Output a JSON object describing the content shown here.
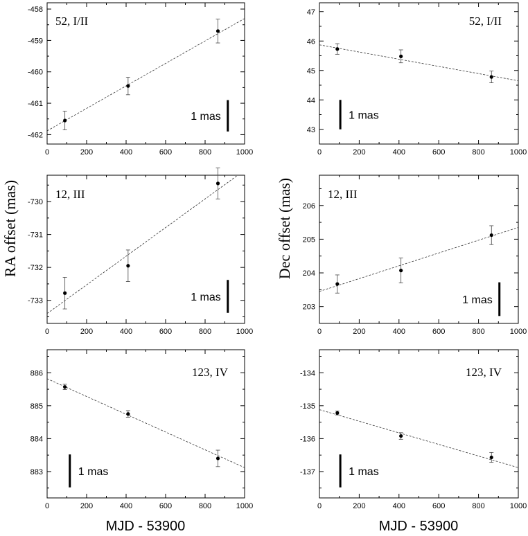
{
  "figure": {
    "ylabel_left": "RA offset (mas)",
    "ylabel_right": "Dec offset (mas)",
    "xlabel_left": "MJD - 53900",
    "xlabel_right": "MJD - 53900"
  },
  "chart_data": [
    {
      "type": "scatter",
      "panel": "ra-52",
      "label": "52, I/II",
      "xlim": [
        0,
        1000
      ],
      "ylim": [
        -462.3,
        -457.8
      ],
      "xticks": [
        0,
        200,
        400,
        600,
        800,
        1000
      ],
      "yticks": [
        -462,
        -461,
        -460,
        -459,
        -458
      ],
      "points": [
        {
          "x": 90,
          "y": -461.55,
          "err": 0.3
        },
        {
          "x": 410,
          "y": -460.45,
          "err": 0.28
        },
        {
          "x": 865,
          "y": -458.7,
          "err": 0.38
        }
      ],
      "fit": {
        "x0": 0,
        "y0": -461.88,
        "x1": 1000,
        "y1": -458.3
      },
      "scale_bar": {
        "label": "1 mas",
        "x": 915,
        "y_bottom": -461.9,
        "length": 1.0
      }
    },
    {
      "type": "scatter",
      "panel": "dec-52",
      "label": "52, I/II",
      "xlim": [
        0,
        1000
      ],
      "ylim": [
        42.5,
        47.3
      ],
      "xticks": [
        0,
        200,
        400,
        600,
        800,
        1000
      ],
      "yticks": [
        43,
        44,
        45,
        46,
        47
      ],
      "points": [
        {
          "x": 90,
          "y": 45.73,
          "err": 0.18
        },
        {
          "x": 410,
          "y": 45.48,
          "err": 0.22
        },
        {
          "x": 865,
          "y": 44.78,
          "err": 0.2
        }
      ],
      "fit": {
        "x0": 0,
        "y0": 45.87,
        "x1": 1000,
        "y1": 44.65
      },
      "scale_bar": {
        "label": "1 mas",
        "x": 105,
        "y_bottom": 43.0,
        "length": 1.0
      }
    },
    {
      "type": "scatter",
      "panel": "ra-12",
      "label": "12, III",
      "xlim": [
        0,
        1000
      ],
      "ylim": [
        -733.7,
        -729.2
      ],
      "xticks": [
        0,
        200,
        400,
        600,
        800,
        1000
      ],
      "yticks": [
        -733,
        -732,
        -731,
        -730
      ],
      "points": [
        {
          "x": 90,
          "y": -732.78,
          "err": 0.48
        },
        {
          "x": 410,
          "y": -731.95,
          "err": 0.48
        },
        {
          "x": 865,
          "y": -729.45,
          "err": 0.47
        }
      ],
      "fit": {
        "x0": 0,
        "y0": -733.4,
        "x1": 1000,
        "y1": -729.05
      },
      "scale_bar": {
        "label": "1 mas",
        "x": 915,
        "y_bottom": -733.38,
        "length": 1.0
      }
    },
    {
      "type": "scatter",
      "panel": "dec-12",
      "label": "12, III",
      "xlim": [
        0,
        1000
      ],
      "ylim": [
        202.5,
        206.9
      ],
      "xticks": [
        0,
        200,
        400,
        600,
        800,
        1000
      ],
      "yticks": [
        203,
        204,
        205,
        206
      ],
      "points": [
        {
          "x": 90,
          "y": 203.67,
          "err": 0.27
        },
        {
          "x": 410,
          "y": 204.07,
          "err": 0.37
        },
        {
          "x": 865,
          "y": 205.12,
          "err": 0.28
        }
      ],
      "fit": {
        "x0": 0,
        "y0": 203.45,
        "x1": 1000,
        "y1": 205.35
      },
      "scale_bar": {
        "label": "1 mas",
        "x": 905,
        "y_bottom": 202.72,
        "length": 1.0
      }
    },
    {
      "type": "scatter",
      "panel": "ra-123",
      "label": "123, IV",
      "xlim": [
        0,
        1000
      ],
      "ylim": [
        882.2,
        886.7
      ],
      "xticks": [
        0,
        200,
        400,
        600,
        800,
        1000
      ],
      "yticks": [
        883,
        884,
        885,
        886
      ],
      "points": [
        {
          "x": 90,
          "y": 885.57,
          "err": 0.08
        },
        {
          "x": 410,
          "y": 884.75,
          "err": 0.1
        },
        {
          "x": 865,
          "y": 883.4,
          "err": 0.25
        }
      ],
      "fit": {
        "x0": 0,
        "y0": 885.82,
        "x1": 1000,
        "y1": 883.12
      },
      "scale_bar": {
        "label": "1 mas",
        "x": 115,
        "y_bottom": 882.52,
        "length": 1.0
      }
    },
    {
      "type": "scatter",
      "panel": "dec-123",
      "label": "123, IV",
      "xlim": [
        0,
        1000
      ],
      "ylim": [
        -137.8,
        -133.3
      ],
      "xticks": [
        0,
        200,
        400,
        600,
        800,
        1000
      ],
      "yticks": [
        -137,
        -136,
        -135,
        -134
      ],
      "points": [
        {
          "x": 90,
          "y": -135.22,
          "err": 0.06
        },
        {
          "x": 410,
          "y": -135.92,
          "err": 0.1
        },
        {
          "x": 865,
          "y": -136.57,
          "err": 0.15
        }
      ],
      "fit": {
        "x0": 0,
        "y0": -135.12,
        "x1": 1000,
        "y1": -136.88
      },
      "scale_bar": {
        "label": "1 mas",
        "x": 105,
        "y_bottom": -137.48,
        "length": 1.0
      }
    }
  ]
}
